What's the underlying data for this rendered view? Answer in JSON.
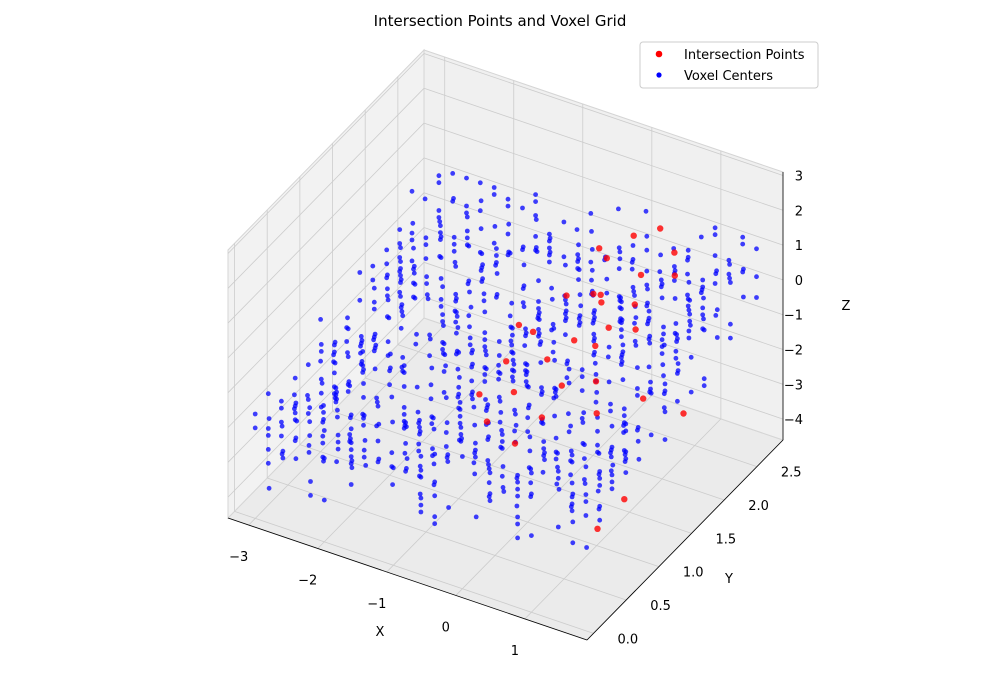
{
  "chart_data": {
    "type": "scatter",
    "subtype": "3d",
    "title": "Intersection Points and Voxel Grid",
    "xlabel": "X",
    "ylabel": "Y",
    "zlabel": "Z",
    "xlim": [
      -3.3,
      1.9
    ],
    "ylim": [
      -0.1,
      2.9
    ],
    "zlim": [
      -4.6,
      3.1
    ],
    "x_ticks": [
      -3,
      -2,
      -1,
      0,
      1
    ],
    "x_tick_labels": [
      "−3",
      "−2",
      "−1",
      "0",
      "1"
    ],
    "y_ticks": [
      0.0,
      0.5,
      1.0,
      1.5,
      2.0,
      2.5
    ],
    "y_tick_labels": [
      "0.0",
      "0.5",
      "1.0",
      "1.5",
      "2.0",
      "2.5"
    ],
    "z_ticks": [
      -4,
      -3,
      -2,
      -1,
      0,
      1,
      2,
      3
    ],
    "z_tick_labels": [
      "−4",
      "−3",
      "−2",
      "−1",
      "0",
      "1",
      "2",
      "3"
    ],
    "grid": true,
    "legend_position": "top-right",
    "series": [
      {
        "name": "Intersection Points",
        "color": "#ff0000",
        "marker": "circle",
        "points": [
          [
            0.8,
            2.4,
            1.0
          ],
          [
            0.4,
            2.2,
            1.6
          ],
          [
            0.6,
            2.1,
            0.8
          ],
          [
            0.2,
            2.0,
            1.2
          ],
          [
            0.7,
            1.9,
            0.4
          ],
          [
            0.3,
            1.8,
            0.6
          ],
          [
            0.9,
            1.7,
            0.2
          ],
          [
            0.5,
            1.6,
            0.9
          ],
          [
            0.1,
            1.9,
            0.3
          ],
          [
            -0.1,
            1.7,
            0.5
          ],
          [
            0.6,
            1.4,
            0.1
          ],
          [
            0.2,
            1.5,
            -0.2
          ],
          [
            0.8,
            1.2,
            -0.4
          ],
          [
            0.4,
            1.1,
            -0.6
          ],
          [
            0.0,
            1.3,
            -0.5
          ],
          [
            -0.3,
            1.4,
            -0.1
          ],
          [
            -0.5,
            1.2,
            -0.7
          ],
          [
            -0.2,
            1.0,
            -1.0
          ],
          [
            0.3,
            0.9,
            -1.2
          ],
          [
            -0.7,
            1.0,
            -1.4
          ],
          [
            -0.4,
            0.8,
            -1.6
          ],
          [
            0.1,
            0.7,
            -1.7
          ],
          [
            1.0,
            1.0,
            -0.8
          ],
          [
            1.2,
            1.5,
            -1.2
          ],
          [
            1.5,
            1.8,
            -2.0
          ],
          [
            1.4,
            1.0,
            -3.0
          ],
          [
            1.2,
            0.8,
            -3.6
          ],
          [
            0.9,
            2.3,
            0.6
          ],
          [
            0.5,
            2.5,
            1.3
          ],
          [
            -0.1,
            2.2,
            0.9
          ],
          [
            0.7,
            1.5,
            0.5
          ],
          [
            -0.6,
            1.5,
            -0.3
          ]
        ]
      },
      {
        "name": "Voxel Centers",
        "color": "#0000ff",
        "marker": "circle",
        "grid_x_range": [
          -3.0,
          1.8
        ],
        "grid_y_range": [
          0.0,
          2.6
        ],
        "grid_z_range": [
          -4.0,
          2.8
        ],
        "grid_step": 0.2
      }
    ]
  }
}
